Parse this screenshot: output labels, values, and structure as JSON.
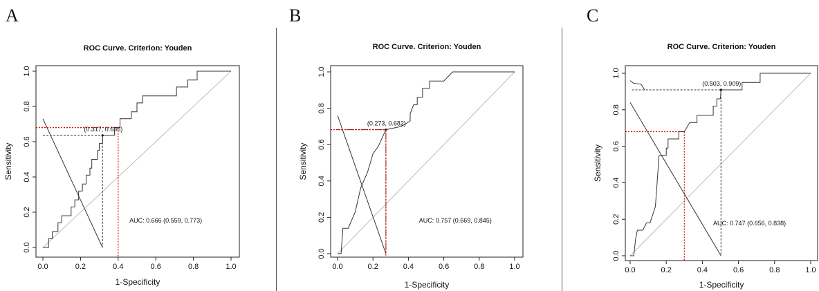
{
  "panels": [
    {
      "letter": "A"
    },
    {
      "letter": "B"
    },
    {
      "letter": "C"
    }
  ],
  "chart_data": [
    {
      "type": "line",
      "title": "ROC Curve. Criterion: Youden",
      "xlabel": "1-Specificity",
      "ylabel": "Sensitivity",
      "xlim": [
        0,
        1
      ],
      "ylim": [
        0,
        1
      ],
      "xticks": [
        "0.0",
        "0.2",
        "0.4",
        "0.6",
        "0.8",
        "1.0"
      ],
      "yticks": [
        "0.0",
        "0.2",
        "0.4",
        "0.6",
        "0.8",
        "1.0"
      ],
      "youden_point": [
        0.317,
        0.636
      ],
      "youden_label": "(0.317, 0.636)",
      "red_point": [
        0.4,
        0.68
      ],
      "auc_label": "AUC: 0.666 (0.559, 0.773)",
      "cross_line": [
        [
          0,
          0.73
        ],
        [
          0.317,
          0
        ]
      ],
      "series": [
        {
          "values": [
            [
              0,
              0
            ],
            [
              0.03,
              0
            ],
            [
              0.03,
              0.05
            ],
            [
              0.05,
              0.05
            ],
            [
              0.05,
              0.09
            ],
            [
              0.08,
              0.09
            ],
            [
              0.08,
              0.14
            ],
            [
              0.1,
              0.14
            ],
            [
              0.1,
              0.18
            ],
            [
              0.15,
              0.18
            ],
            [
              0.15,
              0.23
            ],
            [
              0.17,
              0.23
            ],
            [
              0.17,
              0.27
            ],
            [
              0.19,
              0.27
            ],
            [
              0.19,
              0.32
            ],
            [
              0.21,
              0.32
            ],
            [
              0.21,
              0.36
            ],
            [
              0.23,
              0.36
            ],
            [
              0.23,
              0.41
            ],
            [
              0.25,
              0.41
            ],
            [
              0.25,
              0.45
            ],
            [
              0.26,
              0.45
            ],
            [
              0.26,
              0.5
            ],
            [
              0.29,
              0.5
            ],
            [
              0.29,
              0.55
            ],
            [
              0.3,
              0.55
            ],
            [
              0.3,
              0.59
            ],
            [
              0.317,
              0.59
            ],
            [
              0.317,
              0.636
            ],
            [
              0.38,
              0.636
            ],
            [
              0.38,
              0.68
            ],
            [
              0.41,
              0.68
            ],
            [
              0.41,
              0.73
            ],
            [
              0.47,
              0.73
            ],
            [
              0.47,
              0.77
            ],
            [
              0.5,
              0.77
            ],
            [
              0.5,
              0.82
            ],
            [
              0.53,
              0.82
            ],
            [
              0.53,
              0.86
            ],
            [
              0.71,
              0.86
            ],
            [
              0.71,
              0.91
            ],
            [
              0.77,
              0.91
            ],
            [
              0.77,
              0.95
            ],
            [
              0.82,
              0.95
            ],
            [
              0.82,
              1
            ],
            [
              1,
              1
            ]
          ]
        }
      ]
    },
    {
      "type": "line",
      "title": "ROC Curve. Criterion: Youden",
      "xlabel": "1-Specificity",
      "ylabel": "Sensitivity",
      "xlim": [
        0,
        1
      ],
      "ylim": [
        0,
        1
      ],
      "xticks": [
        "0.0",
        "0.2",
        "0.4",
        "0.6",
        "0.8",
        "1.0"
      ],
      "yticks": [
        "0.0",
        "0.2",
        "0.4",
        "0.6",
        "0.8",
        "1.0"
      ],
      "youden_point": [
        0.273,
        0.682
      ],
      "youden_label": "(0.273, 0.682)",
      "red_point": [
        0.273,
        0.682
      ],
      "auc_label": "AUC: 0.757 (0.669, 0.845)",
      "cross_line": [
        [
          0,
          0.76
        ],
        [
          0.273,
          0
        ]
      ],
      "series": [
        {
          "values": [
            [
              0,
              0
            ],
            [
              0.02,
              0
            ],
            [
              0.03,
              0.14
            ],
            [
              0.06,
              0.14
            ],
            [
              0.1,
              0.23
            ],
            [
              0.13,
              0.36
            ],
            [
              0.17,
              0.45
            ],
            [
              0.2,
              0.55
            ],
            [
              0.23,
              0.59
            ],
            [
              0.273,
              0.682
            ],
            [
              0.36,
              0.7
            ],
            [
              0.41,
              0.73
            ],
            [
              0.41,
              0.77
            ],
            [
              0.43,
              0.82
            ],
            [
              0.45,
              0.82
            ],
            [
              0.45,
              0.86
            ],
            [
              0.48,
              0.86
            ],
            [
              0.48,
              0.91
            ],
            [
              0.52,
              0.91
            ],
            [
              0.52,
              0.95
            ],
            [
              0.6,
              0.95
            ],
            [
              0.65,
              1
            ],
            [
              1,
              1
            ]
          ]
        }
      ]
    },
    {
      "type": "line",
      "title": "ROC Curve. Criterion: Youden",
      "xlabel": "1-Specificity",
      "ylabel": "Sensitivity",
      "xlim": [
        0,
        1
      ],
      "ylim": [
        0,
        1
      ],
      "xticks": [
        "0.0",
        "0.2",
        "0.4",
        "0.6",
        "0.8",
        "1.0"
      ],
      "yticks": [
        "0.0",
        "0.2",
        "0.4",
        "0.6",
        "0.8",
        "1.0"
      ],
      "youden_point": [
        0.503,
        0.909
      ],
      "youden_label": "(0.503, 0.909)",
      "red_point": [
        0.3,
        0.68
      ],
      "auc_label": "AUC: 0.747 (0.656, 0.838)",
      "cross_line": [
        [
          0,
          0.84
        ],
        [
          0.503,
          0
        ]
      ],
      "series": [
        {
          "values": [
            [
              0,
              0
            ],
            [
              0.02,
              0
            ],
            [
              0.03,
              0.09
            ],
            [
              0.04,
              0.14
            ],
            [
              0.07,
              0.14
            ],
            [
              0.09,
              0.18
            ],
            [
              0.11,
              0.18
            ],
            [
              0.14,
              0.27
            ],
            [
              0.16,
              0.55
            ],
            [
              0.2,
              0.55
            ],
            [
              0.2,
              0.59
            ],
            [
              0.21,
              0.59
            ],
            [
              0.21,
              0.64
            ],
            [
              0.27,
              0.64
            ],
            [
              0.27,
              0.68
            ],
            [
              0.3,
              0.68
            ],
            [
              0.33,
              0.73
            ],
            [
              0.37,
              0.73
            ],
            [
              0.37,
              0.77
            ],
            [
              0.46,
              0.77
            ],
            [
              0.46,
              0.82
            ],
            [
              0.48,
              0.82
            ],
            [
              0.48,
              0.86
            ],
            [
              0.5,
              0.86
            ],
            [
              0.503,
              0.909
            ],
            [
              0.62,
              0.909
            ],
            [
              0.62,
              0.95
            ],
            [
              0.72,
              0.95
            ],
            [
              0.72,
              1
            ],
            [
              1,
              1
            ]
          ]
        },
        {
          "values": [
            [
              0,
              0.96
            ],
            [
              0.02,
              0.945
            ],
            [
              0.06,
              0.94
            ],
            [
              0.08,
              0.91
            ]
          ]
        }
      ]
    }
  ]
}
